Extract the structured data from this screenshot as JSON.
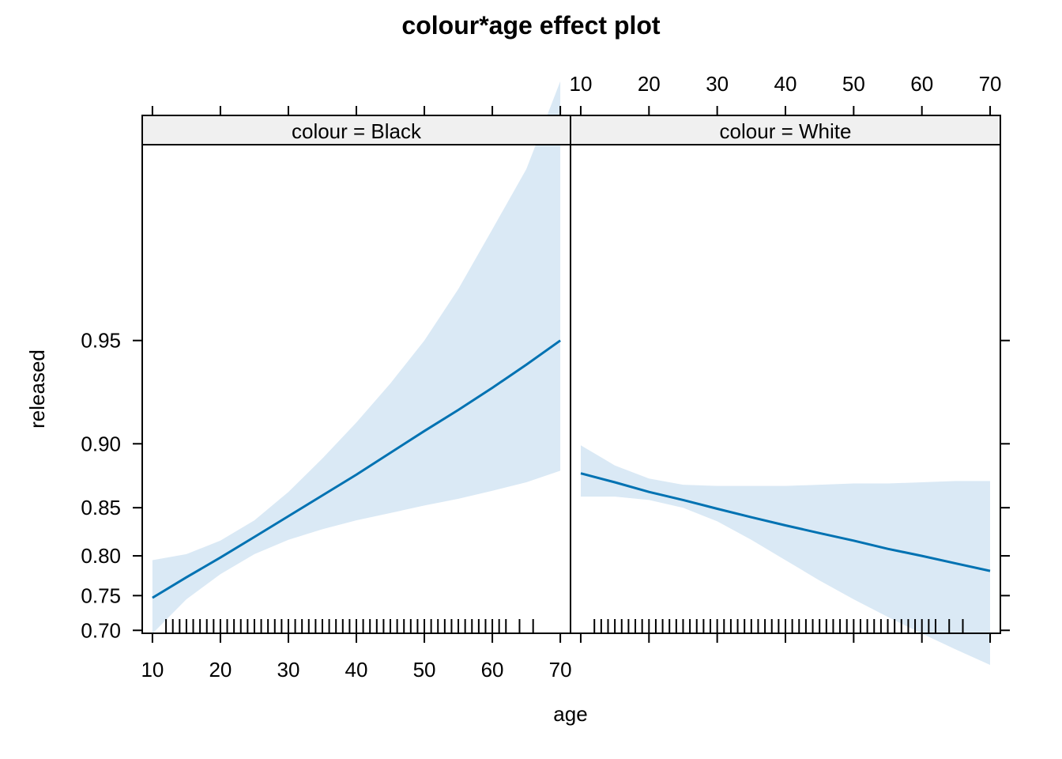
{
  "chart_data": {
    "type": "line",
    "title": "colour*age effect plot",
    "xlabel": "age",
    "ylabel": "released",
    "xlim": [
      8.5,
      71.5
    ],
    "ylim": [
      0.6955,
      0.9874
    ],
    "xticks": [
      10,
      20,
      30,
      40,
      50,
      60,
      70
    ],
    "yticks": [
      0.7,
      0.75,
      0.8,
      0.85,
      0.9,
      0.95
    ],
    "ytick_labels": [
      "0.70",
      "0.75",
      "0.80",
      "0.85",
      "0.90",
      "0.95"
    ],
    "y_scale": "logit",
    "colors": {
      "line": "#0072B2",
      "band": "#dae9f5",
      "strip": "#f0f0f0"
    },
    "panels": [
      {
        "strip": "colour = Black",
        "x": [
          10,
          15,
          20,
          25,
          30,
          35,
          40,
          45,
          50,
          55,
          60,
          65,
          70
        ],
        "fit": [
          0.747,
          0.774,
          0.798,
          0.821,
          0.842,
          0.861,
          0.878,
          0.894,
          0.908,
          0.92,
          0.931,
          0.941,
          0.95
        ],
        "lower": [
          0.695,
          0.745,
          0.778,
          0.802,
          0.818,
          0.829,
          0.838,
          0.845,
          0.852,
          0.858,
          0.865,
          0.872,
          0.881
        ],
        "upper": [
          0.795,
          0.802,
          0.817,
          0.838,
          0.864,
          0.89,
          0.913,
          0.933,
          0.95,
          0.965,
          0.977,
          0.985,
          0.992
        ],
        "rug": [
          12,
          13,
          14,
          15,
          16,
          17,
          18,
          19,
          20,
          21,
          22,
          23,
          24,
          25,
          26,
          27,
          28,
          29,
          30,
          31,
          32,
          33,
          34,
          35,
          36,
          37,
          38,
          39,
          40,
          41,
          42,
          43,
          44,
          45,
          46,
          47,
          48,
          49,
          50,
          51,
          52,
          53,
          54,
          55,
          56,
          57,
          58,
          59,
          60,
          61,
          62,
          64,
          66
        ]
      },
      {
        "strip": "colour = White",
        "x": [
          10,
          15,
          20,
          25,
          30,
          35,
          40,
          45,
          50,
          55,
          60,
          65,
          70
        ],
        "fit": [
          0.879,
          0.872,
          0.864,
          0.857,
          0.849,
          0.841,
          0.833,
          0.825,
          0.817,
          0.808,
          0.8,
          0.791,
          0.782
        ],
        "lower": [
          0.86,
          0.86,
          0.857,
          0.85,
          0.837,
          0.818,
          0.795,
          0.77,
          0.745,
          0.72,
          0.695,
          0.67,
          0.645
        ],
        "upper": [
          0.899,
          0.885,
          0.875,
          0.87,
          0.869,
          0.869,
          0.869,
          0.87,
          0.871,
          0.871,
          0.872,
          0.873,
          0.873
        ],
        "rug": [
          12,
          13,
          14,
          15,
          16,
          17,
          18,
          19,
          20,
          21,
          22,
          23,
          24,
          25,
          26,
          27,
          28,
          29,
          30,
          31,
          32,
          33,
          34,
          35,
          36,
          37,
          38,
          39,
          40,
          41,
          42,
          43,
          44,
          45,
          46,
          47,
          48,
          49,
          50,
          51,
          52,
          53,
          54,
          55,
          56,
          57,
          58,
          59,
          60,
          61,
          62,
          64,
          66
        ]
      }
    ]
  }
}
